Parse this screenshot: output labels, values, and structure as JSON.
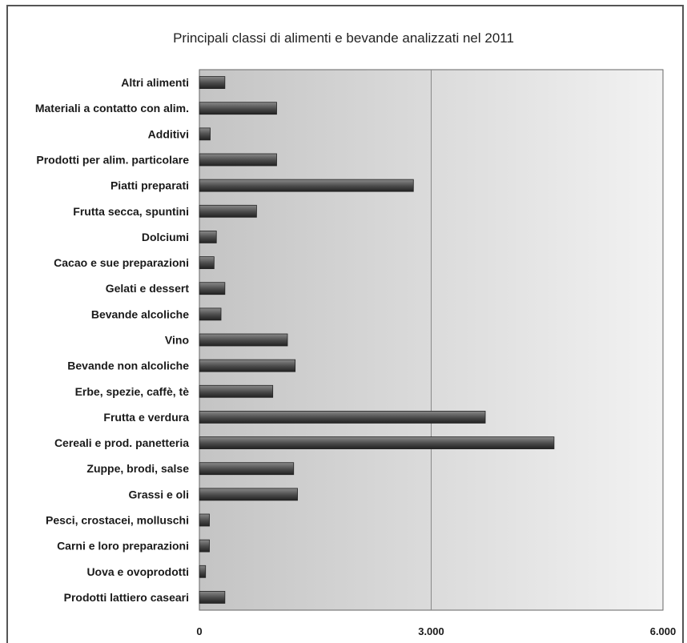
{
  "chart_data": {
    "type": "bar",
    "orientation": "horizontal",
    "title": "Principali classi di alimenti e bevande analizzati nel 2011",
    "categories": [
      "Altri alimenti",
      "Materiali a contatto con alim.",
      "Additivi",
      "Prodotti per alim. particolare",
      "Piatti preparati",
      "Frutta secca, spuntini",
      "Dolciumi",
      "Cacao e sue preparazioni",
      "Gelati e dessert",
      "Bevande alcoliche",
      "Vino",
      "Bevande non alcoliche",
      "Erbe, spezie, caffè, tè",
      "Frutta e verdura",
      "Cereali e prod. panetteria",
      "Zuppe, brodi, salse",
      "Grassi e oli",
      "Pesci, crostacei, molluschi",
      "Carni e loro preparazioni",
      "Uova e ovoprodotti",
      "Prodotti lattiero caseari"
    ],
    "values": [
      330,
      1000,
      140,
      1000,
      2770,
      740,
      220,
      190,
      330,
      280,
      1140,
      1240,
      950,
      3700,
      4590,
      1220,
      1270,
      130,
      130,
      80,
      330
    ],
    "xlim": [
      0,
      6000
    ],
    "x_ticks": [
      0,
      3000,
      6000
    ],
    "x_tick_labels": [
      "0",
      "3.000",
      "6.000"
    ],
    "grid": "vertical",
    "legend": "none",
    "colors": {
      "bar": "#4a4a4a",
      "bar_highlight": "#8a8a8a",
      "bar_shadow": "#222222",
      "plot_bg_dark": "#c4c4c4",
      "plot_bg_light": "#f2f2f2",
      "gridline": "#888888"
    }
  }
}
